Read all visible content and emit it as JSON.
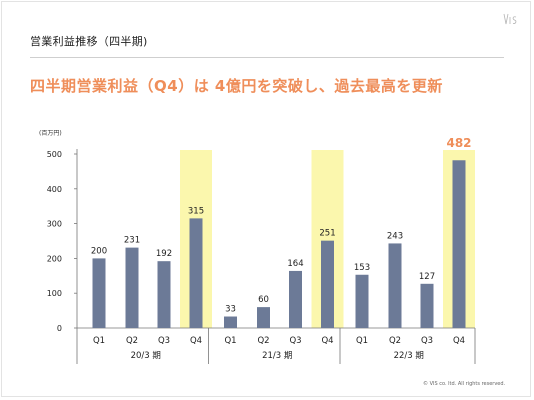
{
  "header": {
    "title": "営業利益推移（四半期)",
    "headline": "四半期営業利益（Q4）は 4億円を突破し、過去最高を更新"
  },
  "footer": {
    "copyright": "© VIS co. ltd. All rights reserved."
  },
  "colors": {
    "bar": "#6c7a97",
    "highlight_band": "#fbf7ad",
    "accent": "#ef8e5a",
    "axis": "#777777"
  },
  "logo_icon": "vis-logo-icon",
  "chart_data": {
    "type": "bar",
    "unit": "(百万円)",
    "ylim": [
      0,
      500
    ],
    "yticks": [
      0,
      100,
      200,
      300,
      400,
      500
    ],
    "grid": false,
    "groups": [
      {
        "label": "20/3 期",
        "categories": [
          "Q1",
          "Q2",
          "Q3",
          "Q4"
        ],
        "values": [
          200,
          231,
          192,
          315
        ]
      },
      {
        "label": "21/3 期",
        "categories": [
          "Q1",
          "Q2",
          "Q3",
          "Q4"
        ],
        "values": [
          33,
          60,
          164,
          251
        ]
      },
      {
        "label": "22/3 期",
        "categories": [
          "Q1",
          "Q2",
          "Q3",
          "Q4"
        ],
        "values": [
          153,
          243,
          127,
          482
        ]
      }
    ],
    "highlighted_category": "Q4",
    "highlighted_value_label": "22/3 期 Q4"
  }
}
